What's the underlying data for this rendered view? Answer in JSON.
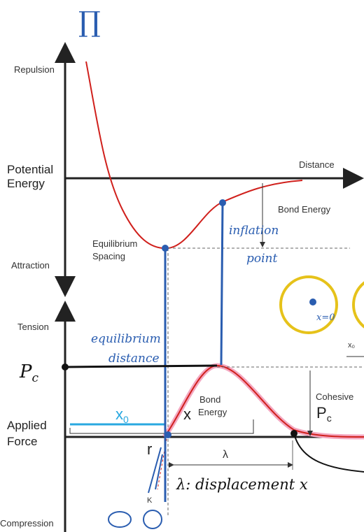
{
  "top_graph": {
    "repulsion": "Repulsion",
    "potential_energy": [
      "Potential",
      "Energy"
    ],
    "attraction": "Attraction",
    "distance": "Distance",
    "bond_energy": "Bond Energy",
    "equilibrium_spacing": [
      "Equilibrium",
      "Spacing"
    ]
  },
  "bottom_graph": {
    "tension": "Tension",
    "applied_force": [
      "Applied",
      "Force"
    ],
    "compression": "Compression",
    "bond_energy": [
      "Bond",
      "Energy"
    ],
    "cohesive": "Cohesive",
    "pc": "P",
    "pc_sub": "c",
    "x0": "x",
    "x0_sub": "0",
    "x": "x",
    "r": "r",
    "lambda": "λ",
    "k": "K",
    "x0_small": "x₀"
  },
  "annotations": {
    "top_symbol": "∏",
    "inflation_point": [
      "inflation",
      "point"
    ],
    "equilibrium_distance": [
      "equilibrium",
      "distance"
    ],
    "pc": "P",
    "pc_sub": "c",
    "displacement": "λ: displacement x",
    "zero": "x=0"
  }
}
